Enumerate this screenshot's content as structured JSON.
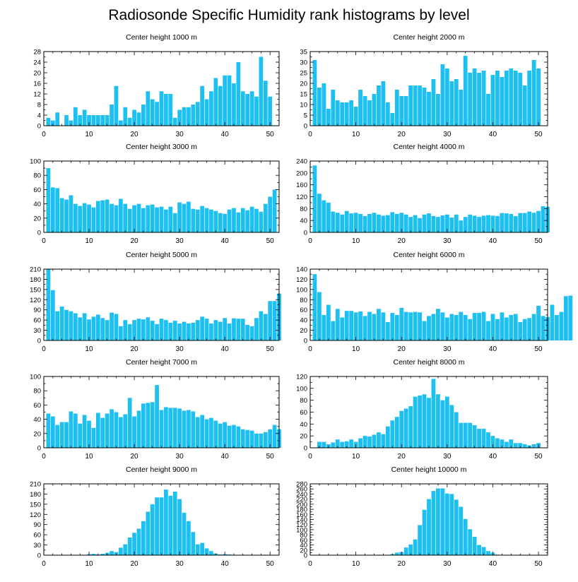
{
  "title": "Radiosonde Specific Humidity rank histograms by level",
  "colors": {
    "bar": "#1ec0f2",
    "axis": "#000000",
    "background": "#ffffff"
  },
  "chart_data": [
    {
      "type": "bar",
      "title": "Center height 1000 m",
      "xlabel": "",
      "ylabel": "",
      "xlim": [
        0,
        52
      ],
      "xticks": [
        0,
        10,
        20,
        30,
        40,
        50
      ],
      "ylim": [
        0,
        28
      ],
      "yticks": [
        0,
        4,
        8,
        12,
        16,
        20,
        24,
        28
      ],
      "values": [
        3,
        2,
        5,
        0,
        4,
        2,
        7,
        4,
        6,
        4,
        4,
        4,
        4,
        4,
        8,
        15,
        2,
        7,
        3,
        6,
        5,
        8,
        13,
        10,
        9,
        13,
        12,
        12,
        3,
        6,
        7,
        7,
        8,
        9,
        15,
        10,
        13,
        18,
        15,
        19,
        19,
        16,
        24,
        13,
        12,
        13,
        11,
        26,
        17,
        11
      ]
    },
    {
      "type": "bar",
      "title": "Center height 2000 m",
      "xlabel": "",
      "ylabel": "",
      "xlim": [
        0,
        52
      ],
      "xticks": [
        0,
        10,
        20,
        30,
        40,
        50
      ],
      "ylim": [
        0,
        35
      ],
      "yticks": [
        0,
        5,
        10,
        15,
        20,
        25,
        30,
        35
      ],
      "values": [
        31,
        18,
        20,
        8,
        17,
        12,
        11,
        11,
        12,
        9,
        17,
        14,
        12,
        15,
        19,
        21,
        11,
        6,
        17,
        14,
        14,
        19,
        19,
        19,
        18,
        16,
        22,
        15,
        29,
        27,
        21,
        22,
        17,
        33,
        25,
        27,
        25,
        26,
        15,
        24,
        26,
        23,
        26,
        27,
        26,
        25,
        19,
        26,
        31,
        27
      ]
    },
    {
      "type": "bar",
      "title": "Center height 3000 m",
      "xlabel": "",
      "ylabel": "",
      "xlim": [
        0,
        52
      ],
      "xticks": [
        0,
        10,
        20,
        30,
        40,
        50
      ],
      "ylim": [
        0,
        100
      ],
      "yticks": [
        0,
        20,
        40,
        60,
        80,
        100
      ],
      "values": [
        90,
        63,
        62,
        48,
        46,
        52,
        40,
        37,
        41,
        39,
        35,
        44,
        45,
        46,
        40,
        38,
        47,
        40,
        33,
        38,
        40,
        34,
        38,
        39,
        35,
        36,
        32,
        36,
        27,
        42,
        40,
        43,
        33,
        32,
        37,
        34,
        32,
        30,
        27,
        26,
        32,
        34,
        28,
        34,
        31,
        36,
        33,
        29,
        40,
        50,
        60
      ]
    },
    {
      "type": "bar",
      "title": "Center height 4000 m",
      "xlabel": "",
      "ylabel": "",
      "xlim": [
        0,
        52
      ],
      "xticks": [
        0,
        10,
        20,
        30,
        40,
        50
      ],
      "ylim": [
        0,
        240
      ],
      "yticks": [
        0,
        40,
        80,
        120,
        160,
        200,
        240
      ],
      "values": [
        225,
        130,
        108,
        100,
        70,
        66,
        60,
        72,
        64,
        66,
        62,
        55,
        62,
        66,
        60,
        56,
        58,
        68,
        62,
        66,
        60,
        52,
        58,
        48,
        60,
        64,
        55,
        52,
        57,
        60,
        50,
        60,
        40,
        52,
        60,
        56,
        52,
        56,
        58,
        56,
        55,
        65,
        64,
        62,
        55,
        65,
        65,
        70,
        66,
        72,
        88,
        86
      ]
    },
    {
      "type": "bar",
      "title": "Center height 5000 m",
      "xlabel": "",
      "ylabel": "",
      "xlim": [
        0,
        52
      ],
      "xticks": [
        0,
        10,
        20,
        30,
        40,
        50
      ],
      "ylim": [
        0,
        210
      ],
      "yticks": [
        0,
        30,
        60,
        90,
        120,
        150,
        180,
        210
      ],
      "values": [
        210,
        148,
        86,
        100,
        90,
        86,
        80,
        68,
        80,
        62,
        70,
        76,
        66,
        60,
        82,
        78,
        42,
        60,
        48,
        60,
        64,
        62,
        68,
        58,
        48,
        64,
        60,
        52,
        58,
        50,
        55,
        50,
        52,
        60,
        70,
        64,
        50,
        60,
        55,
        66,
        50,
        65,
        64,
        64,
        46,
        42,
        66,
        86,
        78,
        116,
        116,
        138
      ]
    },
    {
      "type": "bar",
      "title": "Center height 6000 m",
      "xlabel": "",
      "ylabel": "",
      "xlim": [
        0,
        52
      ],
      "xticks": [
        0,
        10,
        20,
        30,
        40,
        50
      ],
      "ylim": [
        0,
        140
      ],
      "yticks": [
        0,
        20,
        40,
        60,
        80,
        100,
        120,
        140
      ],
      "values": [
        130,
        95,
        50,
        70,
        38,
        62,
        45,
        58,
        58,
        55,
        57,
        48,
        56,
        52,
        62,
        55,
        36,
        54,
        50,
        64,
        56,
        55,
        56,
        55,
        38,
        48,
        52,
        62,
        55,
        45,
        52,
        50,
        56,
        50,
        42,
        54,
        54,
        56,
        38,
        52,
        42,
        55,
        45,
        50,
        52,
        36,
        42,
        44,
        52,
        68,
        48,
        46,
        70,
        50,
        56,
        87,
        88
      ]
    },
    {
      "type": "bar",
      "title": "Center height 7000 m",
      "xlabel": "",
      "ylabel": "",
      "xlim": [
        0,
        52
      ],
      "xticks": [
        0,
        10,
        20,
        30,
        40,
        50
      ],
      "ylim": [
        0,
        100
      ],
      "yticks": [
        0,
        20,
        40,
        60,
        80,
        100
      ],
      "values": [
        48,
        44,
        32,
        36,
        36,
        51,
        48,
        34,
        46,
        38,
        28,
        49,
        42,
        48,
        54,
        50,
        43,
        47,
        70,
        44,
        52,
        62,
        63,
        64,
        88,
        53,
        57,
        56,
        56,
        55,
        52,
        53,
        51,
        43,
        46,
        40,
        42,
        38,
        34,
        36,
        31,
        32,
        30,
        26,
        25,
        24,
        20,
        20,
        22,
        26,
        32,
        26
      ]
    },
    {
      "type": "bar",
      "title": "Center height 8000 m",
      "xlabel": "",
      "ylabel": "",
      "xlim": [
        0,
        52
      ],
      "xticks": [
        0,
        10,
        20,
        30,
        40,
        50
      ],
      "ylim": [
        0,
        120
      ],
      "yticks": [
        0,
        20,
        40,
        60,
        80,
        100,
        120
      ],
      "values": [
        0,
        10,
        10,
        6,
        9,
        14,
        10,
        11,
        14,
        10,
        16,
        20,
        19,
        22,
        26,
        23,
        36,
        46,
        52,
        62,
        66,
        70,
        86,
        88,
        90,
        84,
        116,
        90,
        80,
        86,
        72,
        60,
        42,
        42,
        42,
        38,
        32,
        32,
        26,
        20,
        16,
        14,
        10,
        14,
        8,
        8,
        6,
        4,
        6,
        8
      ]
    },
    {
      "type": "bar",
      "title": "Center height 9000 m",
      "xlabel": "",
      "ylabel": "",
      "xlim": [
        0,
        52
      ],
      "xticks": [
        0,
        10,
        20,
        30,
        40,
        50
      ],
      "ylim": [
        0,
        210
      ],
      "yticks": [
        0,
        30,
        60,
        90,
        120,
        150,
        180,
        210
      ],
      "values": [
        0,
        0,
        0,
        0,
        0,
        0,
        0,
        0,
        0,
        3,
        4,
        2,
        4,
        7,
        12,
        9,
        22,
        32,
        52,
        66,
        78,
        100,
        128,
        150,
        170,
        170,
        193,
        175,
        187,
        165,
        125,
        100,
        68,
        32,
        36,
        20,
        12,
        5,
        2,
        3,
        2,
        0,
        0,
        0,
        0,
        0,
        0,
        0,
        0,
        0,
        0
      ]
    },
    {
      "type": "bar",
      "title": "Center height 10000 m",
      "xlabel": "",
      "ylabel": "",
      "xlim": [
        0,
        52
      ],
      "xticks": [
        0,
        10,
        20,
        30,
        40,
        50
      ],
      "ylim": [
        0,
        280
      ],
      "yticks": [
        0,
        20,
        40,
        60,
        80,
        100,
        120,
        140,
        160,
        180,
        200,
        220,
        240,
        260,
        280
      ],
      "values": [
        0,
        0,
        0,
        0,
        0,
        0,
        0,
        0,
        0,
        0,
        0,
        0,
        0,
        0,
        0,
        0,
        0,
        4,
        10,
        12,
        30,
        42,
        62,
        118,
        178,
        220,
        252,
        262,
        262,
        242,
        240,
        218,
        190,
        142,
        102,
        72,
        40,
        32,
        16,
        10,
        2,
        0,
        0,
        0,
        0,
        0,
        0,
        0,
        0,
        0,
        0
      ]
    }
  ]
}
